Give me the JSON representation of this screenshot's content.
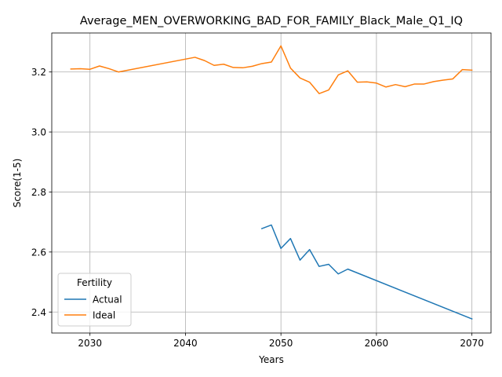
{
  "chart_data": {
    "type": "line",
    "title": "Average_MEN_OVERWORKING_BAD_FOR_FAMILY_Black_Male_Q1_IQ",
    "xlabel": "Years",
    "ylabel": "Score(1-5)",
    "xlim": [
      2026,
      2072
    ],
    "ylim": [
      2.33,
      3.33
    ],
    "xticks": [
      2030,
      2040,
      2050,
      2060,
      2070
    ],
    "yticks": [
      2.4,
      2.6,
      2.8,
      3.0,
      3.2
    ],
    "xtick_labels": [
      "2030",
      "2040",
      "2050",
      "2060",
      "2070"
    ],
    "ytick_labels": [
      "2.4",
      "2.6",
      "2.8",
      "3.0",
      "3.2"
    ],
    "grid": true,
    "legend": {
      "title": "Fertility",
      "placement": "lower-left"
    },
    "series": [
      {
        "name": "Actual",
        "color": "#1f77b4",
        "x": [
          2048,
          2049,
          2050,
          2051,
          2052,
          2053,
          2054,
          2055,
          2056,
          2057,
          2070
        ],
        "y": [
          2.678,
          2.69,
          2.612,
          2.645,
          2.573,
          2.608,
          2.552,
          2.559,
          2.527,
          2.543,
          2.377
        ]
      },
      {
        "name": "Ideal",
        "color": "#ff7f0e",
        "x": [
          2028,
          2029,
          2030,
          2031,
          2032,
          2033,
          2041,
          2042,
          2043,
          2044,
          2045,
          2046,
          2047,
          2048,
          2049,
          2050,
          2051,
          2052,
          2053,
          2054,
          2055,
          2056,
          2057,
          2058,
          2059,
          2060,
          2061,
          2062,
          2063,
          2064,
          2065,
          2066,
          2067,
          2068,
          2069,
          2070
        ],
        "y": [
          3.21,
          3.211,
          3.209,
          3.22,
          3.211,
          3.2,
          3.249,
          3.238,
          3.222,
          3.226,
          3.215,
          3.214,
          3.219,
          3.228,
          3.233,
          3.287,
          3.213,
          3.18,
          3.166,
          3.128,
          3.14,
          3.19,
          3.204,
          3.166,
          3.167,
          3.163,
          3.15,
          3.158,
          3.151,
          3.16,
          3.16,
          3.168,
          3.173,
          3.177,
          3.208,
          3.206
        ]
      }
    ]
  }
}
